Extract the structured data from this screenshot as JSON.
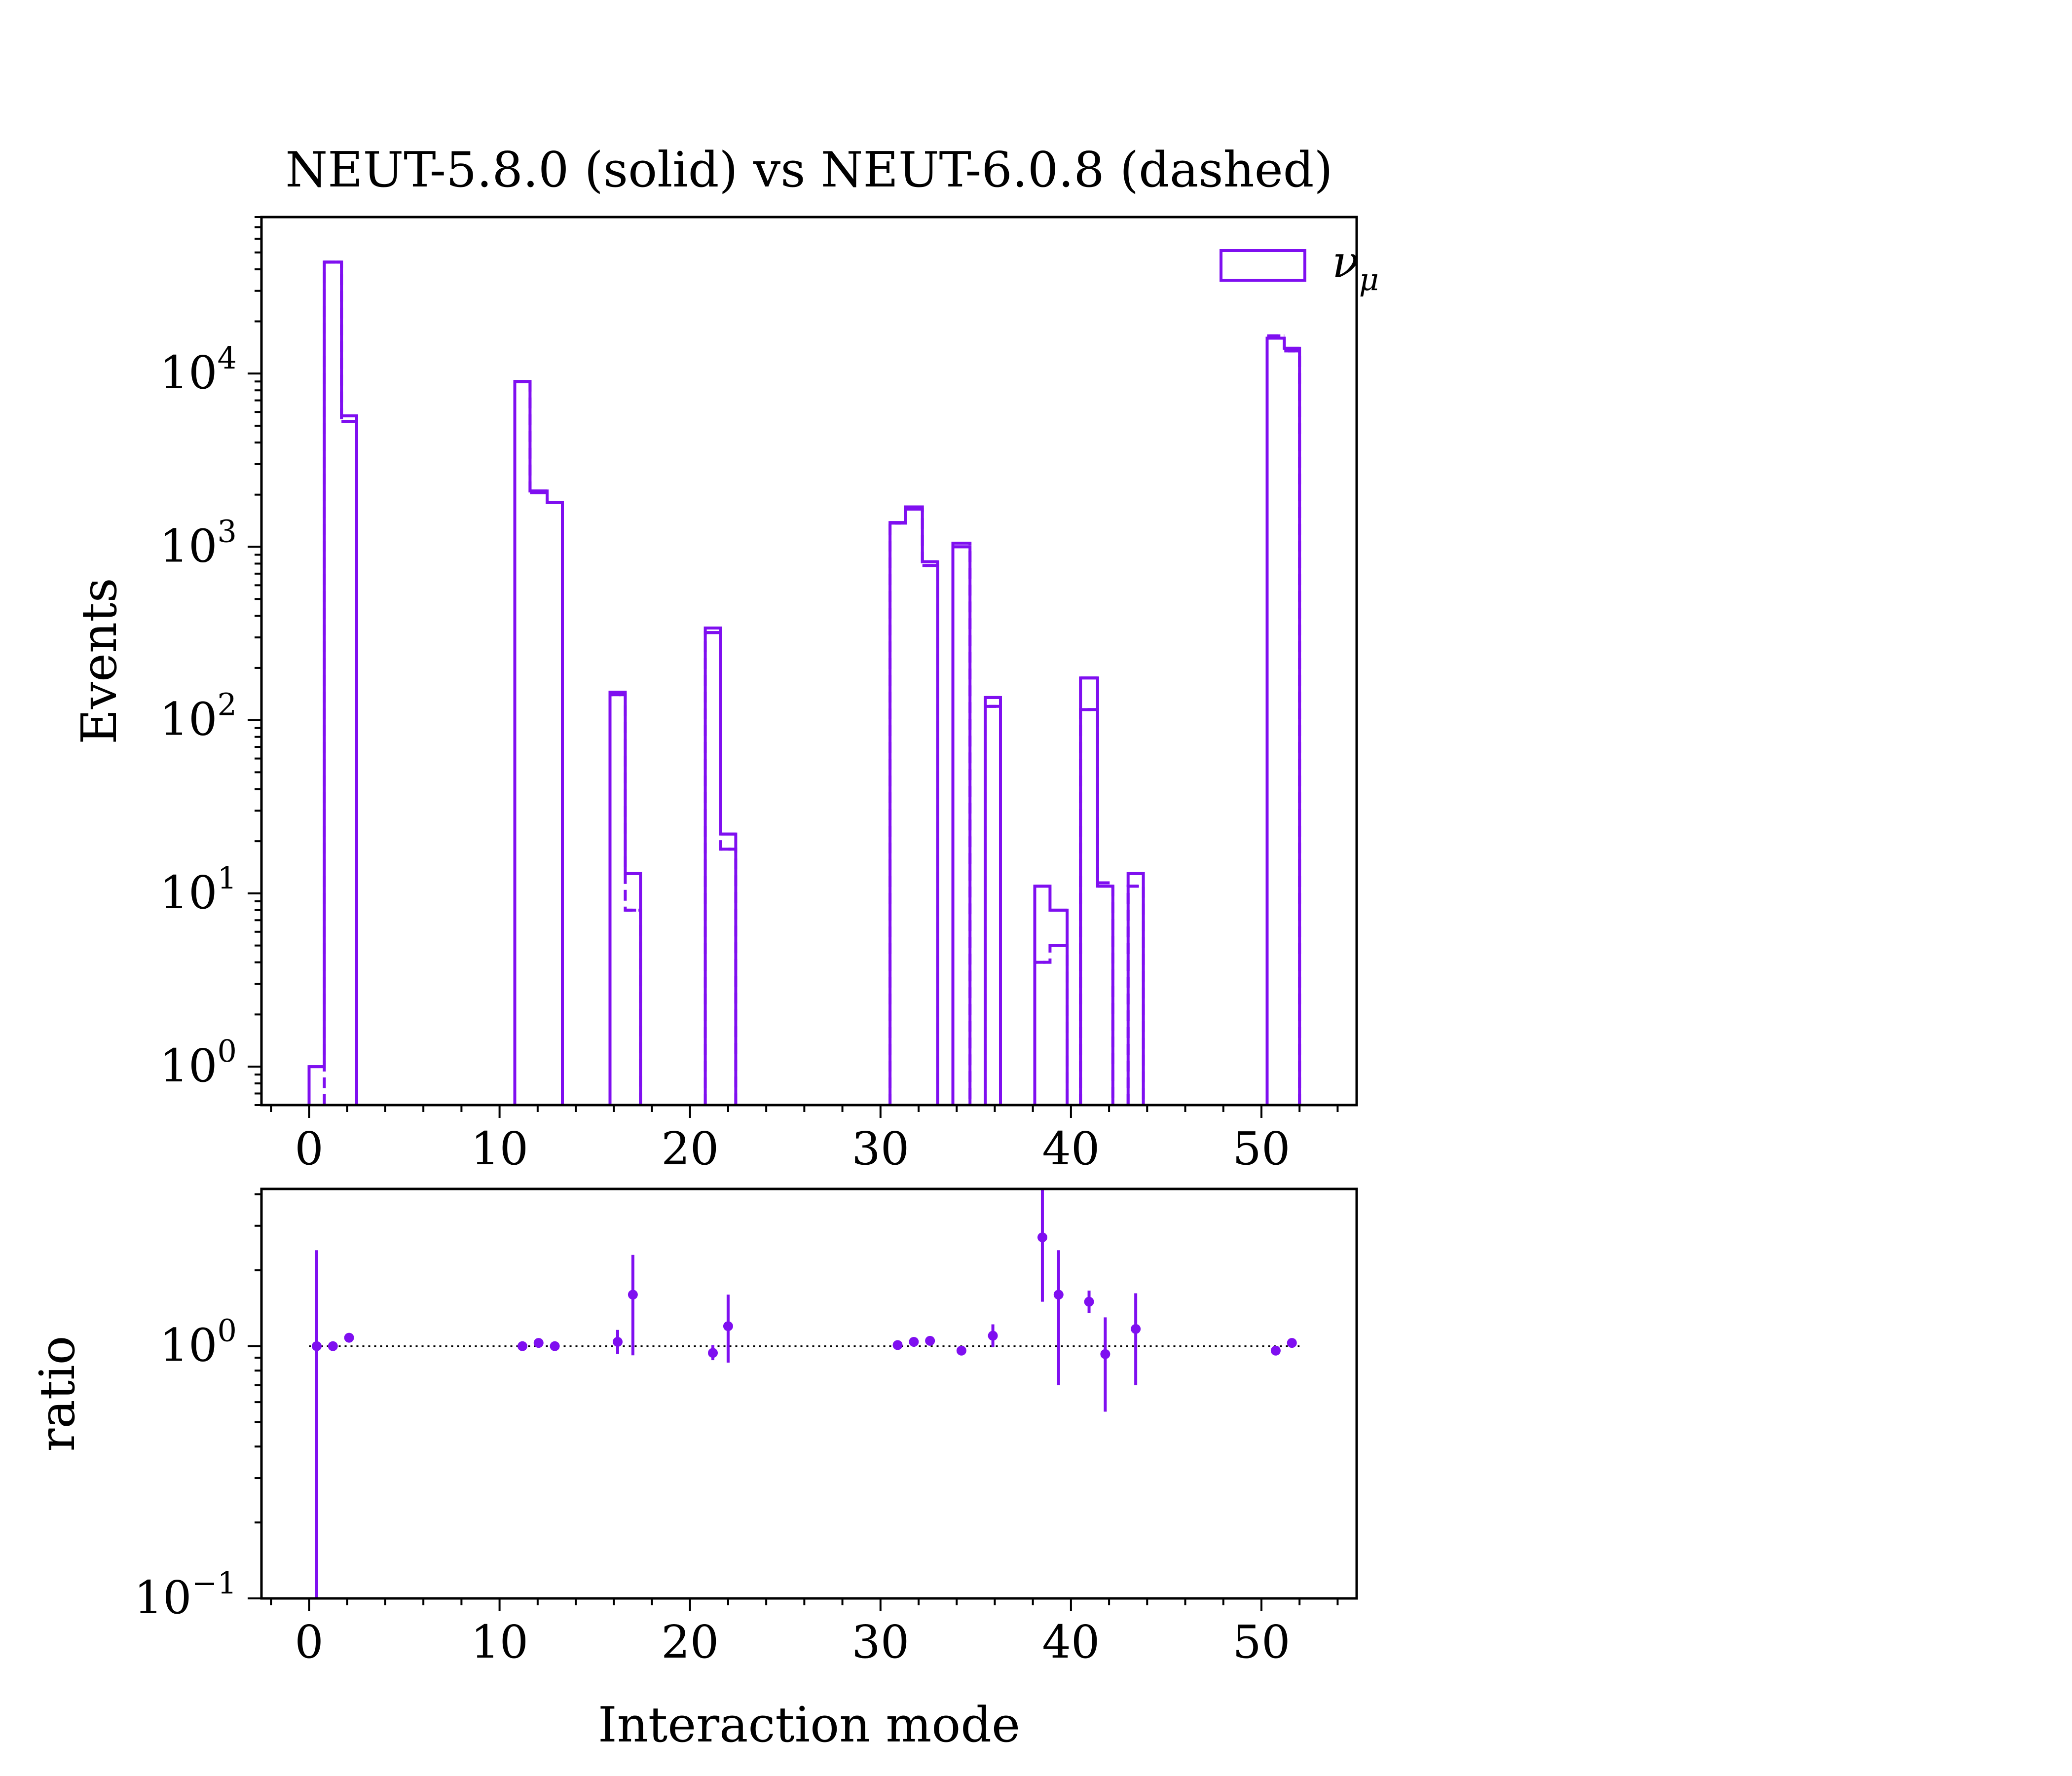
{
  "colors": {
    "series": "#7f0ff0",
    "axis": "#000000",
    "refline": "#000000"
  },
  "chart_data": [
    {
      "type": "histogram",
      "title": "NEUT-5.8.0 (solid) vs NEUT-6.0.8 (dashed)",
      "xlabel": "",
      "ylabel": "Events",
      "yscale": "log",
      "xlim": [
        -2.5,
        55
      ],
      "ylim": [
        0.6,
        80000
      ],
      "grid": false,
      "legend": {
        "position": "top-right",
        "entries": [
          {
            "label": "ν",
            "sub": "μ"
          }
        ]
      },
      "x_ticks": [
        {
          "value": 0,
          "label": "0"
        },
        {
          "value": 10,
          "label": "10"
        },
        {
          "value": 20,
          "label": "20"
        },
        {
          "value": 30,
          "label": "30"
        },
        {
          "value": 40,
          "label": "40"
        },
        {
          "value": 50,
          "label": "50"
        }
      ],
      "y_ticks": [
        {
          "value": 1,
          "base": "10",
          "exp": "0"
        },
        {
          "value": 10,
          "base": "10",
          "exp": "1"
        },
        {
          "value": 100,
          "base": "10",
          "exp": "2"
        },
        {
          "value": 1000,
          "base": "10",
          "exp": "3"
        },
        {
          "value": 10000,
          "base": "10",
          "exp": "4"
        }
      ],
      "series": [
        {
          "name": "NEUT-5.8.0",
          "style": "solid",
          "bins": [
            {
              "x0": 0,
              "x1": 0.8,
              "value": 1
            },
            {
              "x0": 0.8,
              "x1": 1.7,
              "value": 44000
            },
            {
              "x0": 1.7,
              "x1": 2.5,
              "value": 5700
            },
            {
              "x0": 10.8,
              "x1": 11.6,
              "value": 9000
            },
            {
              "x0": 11.6,
              "x1": 12.5,
              "value": 2100
            },
            {
              "x0": 12.5,
              "x1": 13.3,
              "value": 1800
            },
            {
              "x0": 15.8,
              "x1": 16.6,
              "value": 145
            },
            {
              "x0": 16.6,
              "x1": 17.4,
              "value": 13
            },
            {
              "x0": 20.8,
              "x1": 21.6,
              "value": 320
            },
            {
              "x0": 21.6,
              "x1": 22.4,
              "value": 22
            },
            {
              "x0": 30.5,
              "x1": 31.3,
              "value": 1380
            },
            {
              "x0": 31.3,
              "x1": 32.2,
              "value": 1700
            },
            {
              "x0": 32.2,
              "x1": 33.0,
              "value": 820
            },
            {
              "x0": 33.8,
              "x1": 34.7,
              "value": 1000
            },
            {
              "x0": 35.5,
              "x1": 36.3,
              "value": 135
            },
            {
              "x0": 38.1,
              "x1": 38.9,
              "value": 11
            },
            {
              "x0": 38.9,
              "x1": 39.8,
              "value": 8
            },
            {
              "x0": 40.5,
              "x1": 41.4,
              "value": 175
            },
            {
              "x0": 41.4,
              "x1": 42.2,
              "value": 11
            },
            {
              "x0": 43.0,
              "x1": 43.8,
              "value": 13
            },
            {
              "x0": 50.3,
              "x1": 51.2,
              "value": 16000
            },
            {
              "x0": 51.2,
              "x1": 52.0,
              "value": 14000
            }
          ]
        },
        {
          "name": "NEUT-6.0.8",
          "style": "dashed",
          "bins": [
            {
              "x0": 0.8,
              "x1": 1.7,
              "value": 44000
            },
            {
              "x0": 1.7,
              "x1": 2.5,
              "value": 5300
            },
            {
              "x0": 10.8,
              "x1": 11.6,
              "value": 9000
            },
            {
              "x0": 11.6,
              "x1": 12.5,
              "value": 2050
            },
            {
              "x0": 12.5,
              "x1": 13.3,
              "value": 1800
            },
            {
              "x0": 15.8,
              "x1": 16.6,
              "value": 140
            },
            {
              "x0": 16.6,
              "x1": 17.4,
              "value": 8
            },
            {
              "x0": 20.8,
              "x1": 21.6,
              "value": 340
            },
            {
              "x0": 21.6,
              "x1": 22.4,
              "value": 18
            },
            {
              "x0": 30.5,
              "x1": 31.3,
              "value": 1370
            },
            {
              "x0": 31.3,
              "x1": 32.2,
              "value": 1650
            },
            {
              "x0": 32.2,
              "x1": 33.0,
              "value": 780
            },
            {
              "x0": 33.8,
              "x1": 34.7,
              "value": 1050
            },
            {
              "x0": 35.5,
              "x1": 36.3,
              "value": 120
            },
            {
              "x0": 38.1,
              "x1": 38.9,
              "value": 4
            },
            {
              "x0": 38.9,
              "x1": 39.8,
              "value": 5
            },
            {
              "x0": 40.5,
              "x1": 41.4,
              "value": 115
            },
            {
              "x0": 41.4,
              "x1": 42.2,
              "value": 11.5
            },
            {
              "x0": 43.0,
              "x1": 43.8,
              "value": 11
            },
            {
              "x0": 50.3,
              "x1": 51.2,
              "value": 16500
            },
            {
              "x0": 51.2,
              "x1": 52.0,
              "value": 13500
            }
          ]
        }
      ]
    },
    {
      "type": "scatter",
      "title": "",
      "xlabel": "Interaction mode",
      "ylabel": "ratio",
      "yscale": "log",
      "xlim": [
        -2.5,
        55
      ],
      "ylim": [
        0.1,
        4.2
      ],
      "reference_line": 1,
      "x_ticks": [
        {
          "value": 0,
          "label": "0"
        },
        {
          "value": 10,
          "label": "10"
        },
        {
          "value": 20,
          "label": "20"
        },
        {
          "value": 30,
          "label": "30"
        },
        {
          "value": 40,
          "label": "40"
        },
        {
          "value": 50,
          "label": "50"
        }
      ],
      "y_ticks": [
        {
          "value": 0.1,
          "base": "10",
          "exp": "−1"
        },
        {
          "value": 1,
          "base": "10",
          "exp": "0"
        }
      ],
      "points": [
        {
          "x": 0.4,
          "y": 1.0,
          "lo": 0.1,
          "hi": 2.4
        },
        {
          "x": 1.25,
          "y": 1.0,
          "lo": 0.99,
          "hi": 1.01
        },
        {
          "x": 2.1,
          "y": 1.08,
          "lo": 1.05,
          "hi": 1.11
        },
        {
          "x": 11.2,
          "y": 1.0,
          "lo": 0.98,
          "hi": 1.02
        },
        {
          "x": 12.05,
          "y": 1.03,
          "lo": 1.0,
          "hi": 1.06
        },
        {
          "x": 12.9,
          "y": 1.0,
          "lo": 0.97,
          "hi": 1.03
        },
        {
          "x": 16.2,
          "y": 1.04,
          "lo": 0.93,
          "hi": 1.16
        },
        {
          "x": 17.0,
          "y": 1.6,
          "lo": 0.92,
          "hi": 2.3
        },
        {
          "x": 21.2,
          "y": 0.94,
          "lo": 0.88,
          "hi": 1.01
        },
        {
          "x": 22.0,
          "y": 1.2,
          "lo": 0.86,
          "hi": 1.6
        },
        {
          "x": 30.9,
          "y": 1.01,
          "lo": 0.99,
          "hi": 1.03
        },
        {
          "x": 31.75,
          "y": 1.04,
          "lo": 1.02,
          "hi": 1.07
        },
        {
          "x": 32.6,
          "y": 1.05,
          "lo": 1.02,
          "hi": 1.08
        },
        {
          "x": 34.25,
          "y": 0.96,
          "lo": 0.93,
          "hi": 0.99
        },
        {
          "x": 35.9,
          "y": 1.1,
          "lo": 0.99,
          "hi": 1.22
        },
        {
          "x": 38.5,
          "y": 2.7,
          "lo": 1.5,
          "hi": 4.2
        },
        {
          "x": 39.35,
          "y": 1.6,
          "lo": 0.7,
          "hi": 2.4
        },
        {
          "x": 40.95,
          "y": 1.5,
          "lo": 1.35,
          "hi": 1.66
        },
        {
          "x": 41.8,
          "y": 0.93,
          "lo": 0.55,
          "hi": 1.3
        },
        {
          "x": 43.4,
          "y": 1.17,
          "lo": 0.7,
          "hi": 1.62
        },
        {
          "x": 50.75,
          "y": 0.96,
          "lo": 0.95,
          "hi": 0.97
        },
        {
          "x": 51.6,
          "y": 1.03,
          "lo": 1.02,
          "hi": 1.04
        }
      ]
    }
  ]
}
